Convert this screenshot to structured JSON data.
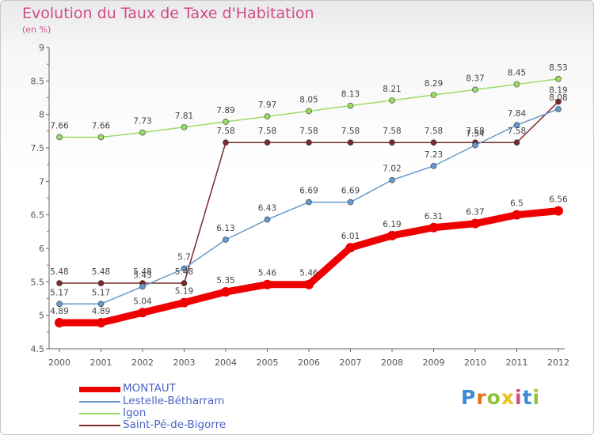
{
  "chart_data": {
    "type": "line",
    "title": "Evolution du Taux de Taxe d'Habitation",
    "subtitle": "(en %)",
    "x": [
      "2000",
      "2001",
      "2002",
      "2003",
      "2004",
      "2005",
      "2006",
      "2007",
      "2008",
      "2009",
      "2010",
      "2011",
      "2012"
    ],
    "ylim": [
      4.5,
      9
    ],
    "yticks": [
      "4.5",
      "5",
      "5.5",
      "6",
      "6.5",
      "7",
      "7.5",
      "8",
      "8.5",
      "9"
    ],
    "grid": false,
    "legend_position": "bottom-left",
    "series": [
      {
        "name": "MONTAUT",
        "color": "#ee0000",
        "values": [
          4.89,
          4.89,
          5.04,
          5.19,
          5.35,
          5.46,
          5.46,
          6.01,
          6.19,
          6.31,
          6.37,
          6.5,
          6.56
        ],
        "labels": [
          "4.89",
          "4.89",
          "5.04",
          "5.19",
          "5.35",
          "5.46",
          "5.46",
          "6.01",
          "6.19",
          "6.31",
          "6.37",
          "6.5",
          "6.56"
        ]
      },
      {
        "name": "Lestelle-Bétharram",
        "color": "#6699cc",
        "values": [
          5.17,
          5.17,
          5.43,
          5.7,
          6.13,
          6.43,
          6.69,
          6.69,
          7.02,
          7.23,
          7.54,
          7.84,
          8.08
        ],
        "labels": [
          "5.17",
          "5.17",
          "5.43",
          "5.7",
          "6.13",
          "6.43",
          "6.69",
          "6.69",
          "7.02",
          "7.23",
          "7.54",
          "7.84",
          "8.08"
        ]
      },
      {
        "name": "Igon",
        "color": "#99dd66",
        "values": [
          7.66,
          7.66,
          7.73,
          7.81,
          7.89,
          7.97,
          8.05,
          8.13,
          8.21,
          8.29,
          8.37,
          8.45,
          8.53
        ],
        "labels": [
          "7.66",
          "7.66",
          "7.73",
          "7.81",
          "7.89",
          "7.97",
          "8.05",
          "8.13",
          "8.21",
          "8.29",
          "8.37",
          "8.45",
          "8.53"
        ]
      },
      {
        "name": "Saint-Pé-de-Bigorre",
        "color": "#7a2a2a",
        "values": [
          5.48,
          5.48,
          5.48,
          5.48,
          7.58,
          7.58,
          7.58,
          7.58,
          7.58,
          7.58,
          7.58,
          7.58,
          8.19
        ],
        "labels": [
          "5.48",
          "5.48",
          "5.48",
          "5.48",
          "7.58",
          "7.58",
          "7.58",
          "7.58",
          "7.58",
          "7.58",
          "7.58",
          "7.58",
          "8.19"
        ]
      }
    ]
  },
  "legend": {
    "montaut": "MONTAUT",
    "lestelle": "Lestelle-Bétharram",
    "igon": "Igon",
    "saintpe": "Saint-Pé-de-Bigorre"
  },
  "logo": {
    "text": "Proxiti"
  }
}
